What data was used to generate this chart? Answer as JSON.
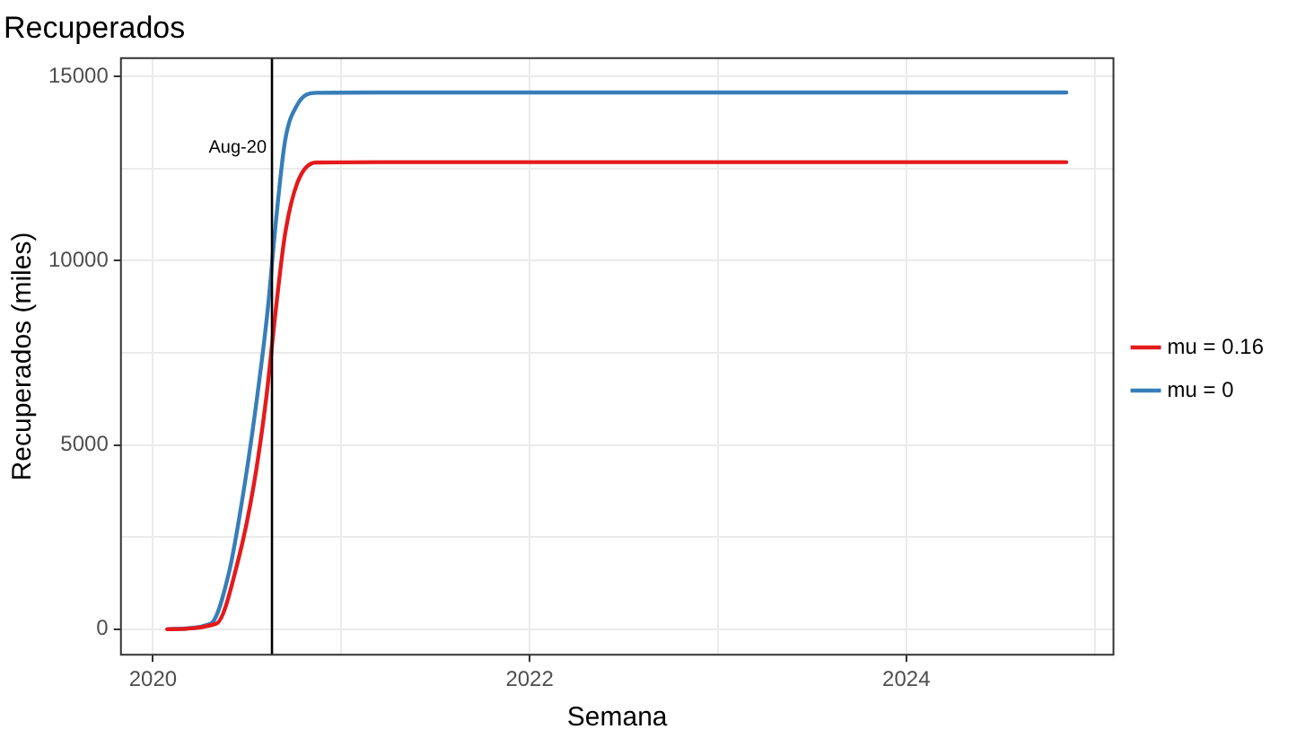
{
  "chart_data": {
    "type": "line",
    "title": "Recuperados",
    "xlabel": "Semana",
    "ylabel": "Recuperados (miles)",
    "series": [
      {
        "name": "mu = 0.16",
        "color": "#e41a1c",
        "x": [
          2020.076,
          2020.336,
          2020.454,
          2020.536,
          2020.602,
          2020.652,
          2020.701,
          2020.767,
          2020.866,
          2021.2,
          2024.85
        ],
        "values": [
          0,
          150,
          1900,
          3930,
          6290,
          8650,
          10700,
          12110,
          12660,
          12670,
          12670
        ]
      },
      {
        "name": "mu = 0",
        "color": "#377eb8",
        "x": [
          2020.076,
          2020.306,
          2020.405,
          2020.487,
          2020.553,
          2020.609,
          2020.652,
          2020.701,
          2020.767,
          2020.866,
          2021.2,
          2024.85
        ],
        "values": [
          0,
          150,
          1570,
          3930,
          6290,
          8650,
          11010,
          13230,
          14230,
          14550,
          14560,
          14560
        ]
      }
    ],
    "xlim": [
      2019.83,
      2025.1
    ],
    "xticks": [
      2020,
      {
        "value": 2021,
        "label": null
      },
      2022,
      {
        "value": 2023,
        "label": null
      },
      2024,
      {
        "value": 2025,
        "label": null
      }
    ],
    "ylim": [
      -690,
      15490
    ],
    "yticks": [
      0,
      {
        "value": 2500,
        "label": null
      },
      5000,
      {
        "value": 7500,
        "label": null
      },
      10000,
      {
        "value": 12500,
        "label": null
      },
      15000
    ],
    "ref_lines": [
      {
        "axis": "x",
        "value": 2020.632,
        "label": "Aug-20",
        "color": "#000000"
      }
    ],
    "grid": true,
    "legend": "right",
    "marker": "none",
    "line_style": "solid"
  }
}
